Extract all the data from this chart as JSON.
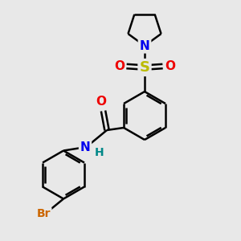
{
  "bg_color": "#e8e8e8",
  "bond_color": "#000000",
  "bond_width": 1.8,
  "atom_colors": {
    "N": "#0000ee",
    "O": "#ee0000",
    "S": "#bbbb00",
    "Br": "#cc6600",
    "H": "#008888",
    "C": "#000000"
  },
  "font_size": 10,
  "figsize": [
    3.0,
    3.0
  ],
  "dpi": 100,
  "xlim": [
    0,
    10
  ],
  "ylim": [
    0,
    10
  ]
}
